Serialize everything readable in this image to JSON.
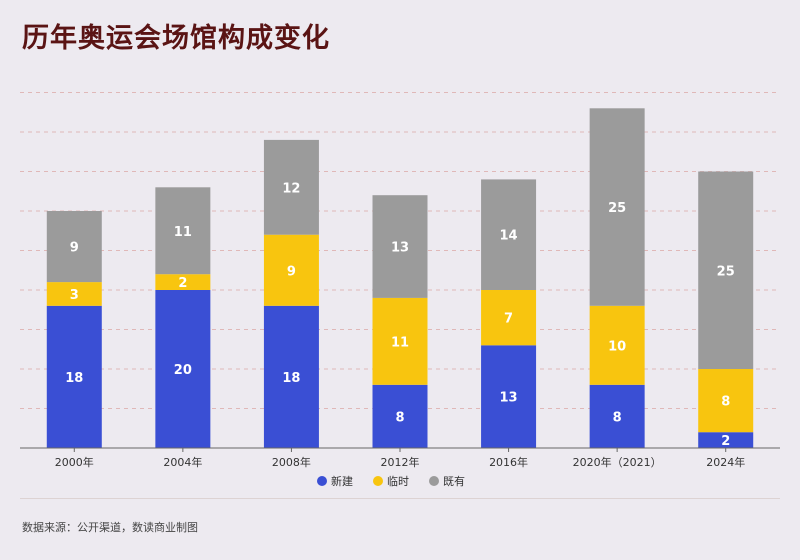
{
  "title": "历年奥运会场馆构成变化",
  "source": "数据来源：公开渠道，数读商业制图",
  "colors": {
    "background": "#edeaf0",
    "title": "#5a1414",
    "新建": "#3a4fd4",
    "临时": "#f8c50f",
    "既有": "#9b9b9b",
    "grid": "#e0b8b8"
  },
  "chart_data": {
    "type": "bar",
    "stacked": true,
    "categories": [
      "2000年",
      "2004年",
      "2008年",
      "2012年",
      "2016年",
      "2020年（2021）",
      "2024年"
    ],
    "series": [
      {
        "name": "新建",
        "values": [
          18,
          20,
          18,
          8,
          13,
          8,
          2
        ]
      },
      {
        "name": "临时",
        "values": [
          3,
          2,
          9,
          11,
          7,
          10,
          8
        ]
      },
      {
        "name": "既有",
        "values": [
          9,
          11,
          12,
          13,
          14,
          25,
          25
        ]
      }
    ],
    "ylim": [
      0,
      45
    ],
    "grid": true,
    "legend": "bottom"
  }
}
